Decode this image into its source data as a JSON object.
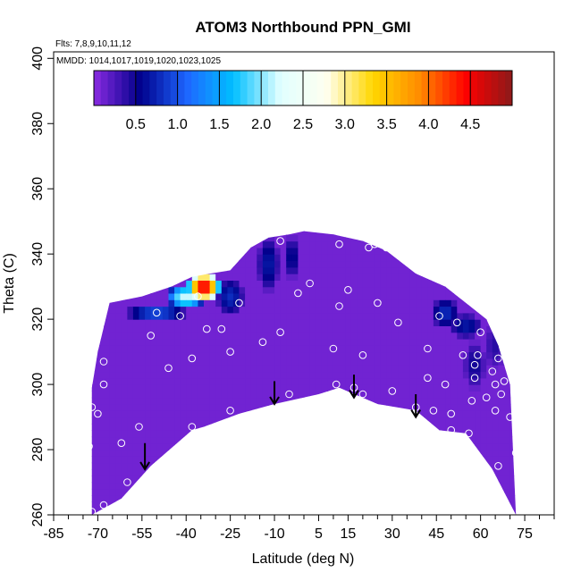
{
  "chart_data": {
    "type": "heatmap",
    "title": "ATOM3 Northbound PPN_GMI",
    "flights_label": "Flts: 7,8,9,10,11,12",
    "dates_label": "MMDD: 1014,1017,1019,1020,1023,1025",
    "xlabel": "Latitude (deg N)",
    "ylabel": "Theta (C)",
    "xlim": [
      -85,
      85
    ],
    "ylim": [
      260,
      402
    ],
    "xticks": [
      -85,
      -70,
      -55,
      -40,
      -25,
      -10,
      5,
      15,
      30,
      45,
      60,
      75
    ],
    "xticks_minor": [
      -80,
      -75,
      -65,
      -60,
      -50,
      -45,
      -35,
      -30,
      -20,
      -15,
      -5,
      0,
      10,
      20,
      25,
      35,
      40,
      50,
      55,
      65,
      70,
      80,
      85
    ],
    "yticks": [
      260,
      280,
      300,
      320,
      340,
      360,
      380,
      400
    ],
    "colorbar": {
      "range": [
        0,
        5
      ],
      "ticks": [
        0.5,
        1.0,
        1.5,
        2.0,
        2.5,
        3.0,
        3.5,
        4.0,
        4.5
      ],
      "tick_labels": [
        "0.5",
        "1.0",
        "1.5",
        "2.0",
        "2.5",
        "3.0",
        "3.5",
        "4.0",
        "4.5"
      ],
      "colors": [
        "#8a2be2",
        "#00008b",
        "#1e66ff",
        "#00bfff",
        "#e0ffff",
        "#fffff0",
        "#ffd700",
        "#ff8c00",
        "#ff0000",
        "#8b1a1a"
      ]
    },
    "background_value": 0.1,
    "data_envelope": {
      "top": [
        [
          -72,
          299
        ],
        [
          -70,
          310
        ],
        [
          -66,
          325
        ],
        [
          -55,
          327
        ],
        [
          -45,
          330
        ],
        [
          -38,
          333
        ],
        [
          -32,
          334
        ],
        [
          -25,
          335
        ],
        [
          -18,
          342
        ],
        [
          -12,
          345
        ],
        [
          -5,
          346
        ],
        [
          0,
          347
        ],
        [
          10,
          346
        ],
        [
          20,
          344
        ],
        [
          28,
          341
        ],
        [
          38,
          334
        ],
        [
          48,
          330
        ],
        [
          55,
          325
        ],
        [
          62,
          320
        ],
        [
          66,
          312
        ],
        [
          70,
          300
        ]
      ],
      "bottom": [
        [
          -72,
          260
        ],
        [
          -62,
          265
        ],
        [
          -52,
          275
        ],
        [
          -38,
          286
        ],
        [
          -34,
          287
        ],
        [
          -22,
          291
        ],
        [
          -10,
          294
        ],
        [
          5,
          297
        ],
        [
          12,
          299
        ],
        [
          25,
          294
        ],
        [
          38,
          292
        ],
        [
          46,
          286
        ],
        [
          55,
          285
        ],
        [
          64,
          274
        ],
        [
          72,
          260
        ]
      ]
    },
    "high_regions": [
      {
        "lat": -34,
        "theta": 330,
        "value": 4.6,
        "rx": 6,
        "ry": 5
      },
      {
        "lat": -40,
        "theta": 327,
        "value": 2.2,
        "rx": 7,
        "ry": 4
      },
      {
        "lat": -50,
        "theta": 322,
        "value": 1.0,
        "rx": 11,
        "ry": 3
      },
      {
        "lat": -25,
        "theta": 327,
        "value": 0.8,
        "rx": 5,
        "ry": 6
      },
      {
        "lat": -12,
        "theta": 337,
        "value": 0.7,
        "rx": 4,
        "ry": 9
      },
      {
        "lat": -4,
        "theta": 339,
        "value": 0.6,
        "rx": 3,
        "ry": 7
      },
      {
        "lat": 48,
        "theta": 322,
        "value": 0.8,
        "rx": 5,
        "ry": 5
      },
      {
        "lat": 55,
        "theta": 318,
        "value": 0.7,
        "rx": 6,
        "ry": 4
      },
      {
        "lat": 58,
        "theta": 306,
        "value": 0.5,
        "rx": 4,
        "ry": 8
      },
      {
        "lat": 65,
        "theta": 312,
        "value": 0.4,
        "rx": 4,
        "ry": 8
      }
    ],
    "obs_points": [
      [
        -72,
        261
      ],
      [
        -68,
        263
      ],
      [
        -73,
        281
      ],
      [
        -60,
        270
      ],
      [
        -62,
        282
      ],
      [
        -70,
        291
      ],
      [
        -72,
        293
      ],
      [
        -56,
        287
      ],
      [
        -68,
        300
      ],
      [
        -68,
        307
      ],
      [
        -52,
        315
      ],
      [
        -50,
        322
      ],
      [
        -46,
        305
      ],
      [
        -38,
        308
      ],
      [
        -42,
        321
      ],
      [
        -36,
        327
      ],
      [
        -33,
        317
      ],
      [
        -25,
        310
      ],
      [
        -22,
        325
      ],
      [
        -28,
        317
      ],
      [
        -38,
        287
      ],
      [
        -25,
        292
      ],
      [
        -14,
        313
      ],
      [
        -8,
        316
      ],
      [
        -5,
        297
      ],
      [
        -2,
        328
      ],
      [
        2,
        331
      ],
      [
        -8,
        344
      ],
      [
        10,
        311
      ],
      [
        11,
        300
      ],
      [
        12,
        343
      ],
      [
        12,
        324
      ],
      [
        15,
        329
      ],
      [
        17,
        299
      ],
      [
        20,
        297
      ],
      [
        20,
        309
      ],
      [
        22,
        342
      ],
      [
        24,
        343
      ],
      [
        25,
        325
      ],
      [
        28,
        342
      ],
      [
        30,
        298
      ],
      [
        32,
        319
      ],
      [
        38,
        293
      ],
      [
        42,
        302
      ],
      [
        42,
        311
      ],
      [
        44,
        292
      ],
      [
        46,
        321
      ],
      [
        48,
        300
      ],
      [
        50,
        291
      ],
      [
        50,
        286
      ],
      [
        52,
        319
      ],
      [
        54,
        309
      ],
      [
        56,
        285
      ],
      [
        57,
        295
      ],
      [
        58,
        302
      ],
      [
        58,
        306
      ],
      [
        59,
        309
      ],
      [
        60,
        316
      ],
      [
        62,
        296
      ],
      [
        64,
        304
      ],
      [
        65,
        300
      ],
      [
        65,
        292
      ],
      [
        66,
        308
      ],
      [
        67,
        297
      ],
      [
        68,
        301
      ],
      [
        70,
        290
      ],
      [
        66,
        275
      ],
      [
        72,
        279
      ],
      [
        70,
        260
      ]
    ],
    "arrows": [
      {
        "lat": -54,
        "theta_top": 282,
        "theta_bottom": 274
      },
      {
        "lat": -10,
        "theta_top": 301,
        "theta_bottom": 294
      },
      {
        "lat": 17,
        "theta_top": 303,
        "theta_bottom": 296
      },
      {
        "lat": 38,
        "theta_top": 297,
        "theta_bottom": 290
      }
    ]
  }
}
